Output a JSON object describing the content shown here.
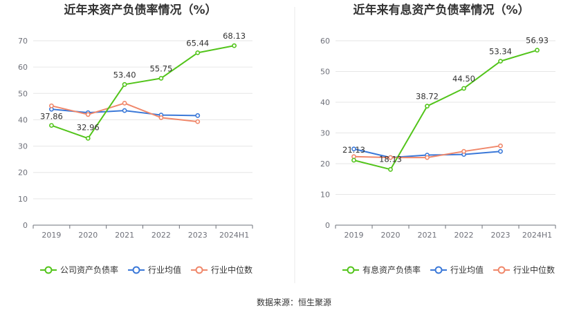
{
  "source_label": "数据来源：恒生聚源",
  "chart_data": [
    {
      "type": "line",
      "title": "近年来资产负债率情况（%）",
      "categories": [
        "2019",
        "2020",
        "2021",
        "2022",
        "2023",
        "2024H1"
      ],
      "ylim": [
        0,
        70
      ],
      "yticks": [
        0,
        10,
        20,
        30,
        40,
        50,
        60,
        70
      ],
      "grid": true,
      "legend_position": "bottom",
      "series": [
        {
          "name": "公司资产负债率",
          "color": "#52c41a",
          "values": [
            37.86,
            32.96,
            53.4,
            55.75,
            65.44,
            68.13
          ],
          "labels": [
            "37.86",
            "32.96",
            "53.40",
            "55.75",
            "65.44",
            "68.13"
          ]
        },
        {
          "name": "行业均值",
          "color": "#3a78d8",
          "values": [
            44.0,
            42.7,
            43.5,
            41.8,
            41.6,
            null
          ]
        },
        {
          "name": "行业中位数",
          "color": "#f0876a",
          "values": [
            45.3,
            42.0,
            46.3,
            40.8,
            39.3,
            null
          ]
        }
      ]
    },
    {
      "type": "line",
      "title": "近年来有息资产负债率情况（%）",
      "categories": [
        "2019",
        "2020",
        "2021",
        "2022",
        "2023",
        "2024H1"
      ],
      "ylim": [
        0,
        60
      ],
      "yticks": [
        0,
        10,
        20,
        30,
        40,
        50,
        60
      ],
      "grid": true,
      "legend_position": "bottom",
      "series": [
        {
          "name": "有息资产负债率",
          "color": "#52c41a",
          "values": [
            21.13,
            18.13,
            38.72,
            44.5,
            53.34,
            56.93
          ],
          "labels": [
            "21.13",
            "18.13",
            "38.72",
            "44.50",
            "53.34",
            "56.93"
          ]
        },
        {
          "name": "行业均值",
          "color": "#3a78d8",
          "values": [
            24.8,
            22.0,
            22.8,
            23.0,
            24.0,
            null
          ]
        },
        {
          "name": "行业中位数",
          "color": "#f0876a",
          "values": [
            22.3,
            22.0,
            22.0,
            24.0,
            25.8,
            null
          ]
        }
      ]
    }
  ]
}
